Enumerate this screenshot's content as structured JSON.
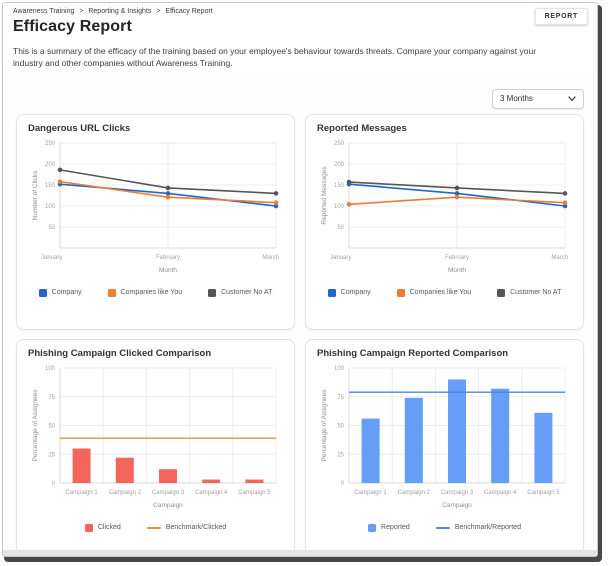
{
  "header": {
    "breadcrumb": {
      "separator": ">",
      "items": [
        {
          "label": "Awareness Training"
        },
        {
          "label": "Reporting & Insights"
        },
        {
          "label": "Efficacy Report"
        }
      ]
    },
    "title": "Efficacy Report",
    "description": "This is a summary of the efficacy of the training based on your employee's behaviour towards threats. Compare your company against your industry and other companies without Awareness Training.",
    "report_button_label": "REPORT",
    "period_select": {
      "value": "3 Months",
      "icon": "chevron-down-icon"
    }
  },
  "colors": {
    "company_blue": "#2166c9",
    "companies_like_you_orange": "#ED7D31",
    "customer_no_at_gray": "#55565A",
    "clicked_red": "#F4655C",
    "benchmark_clicked_orange": "#E8913C",
    "reported_blue": "#669DF6",
    "benchmark_reported_blue": "#4C86E8",
    "card_border": "#e2e3e6",
    "grid_line": "#ececec",
    "window_shadow": "#474747"
  },
  "chart_data": [
    {
      "type": "line",
      "title": "Dangerous URL Clicks",
      "xlabel": "Month",
      "ylabel": "Number of Clicks",
      "ylim": [
        0,
        250
      ],
      "yticks": [
        50,
        100,
        150,
        200,
        250
      ],
      "grid": true,
      "legend_position": "bottom",
      "categories": [
        "January",
        "February",
        "March"
      ],
      "series": [
        {
          "name": "Company",
          "color": "#2166c9",
          "values": [
            152,
            130,
            100
          ]
        },
        {
          "name": "Companies like You",
          "color": "#ED7D31",
          "values": [
            158,
            121,
            108
          ]
        },
        {
          "name": "Customer No AT",
          "color": "#55565A",
          "values": [
            186,
            143,
            130
          ]
        }
      ]
    },
    {
      "type": "line",
      "title": "Reported Messages",
      "xlabel": "Month",
      "ylabel": "Reported Messages",
      "ylim": [
        0,
        250
      ],
      "yticks": [
        50,
        100,
        150,
        200,
        250
      ],
      "grid": true,
      "legend_position": "bottom",
      "categories": [
        "January",
        "February",
        "March"
      ],
      "series": [
        {
          "name": "Company",
          "color": "#2166c9",
          "values": [
            152,
            130,
            100
          ]
        },
        {
          "name": "Companies like You",
          "color": "#ED7D31",
          "values": [
            104,
            121,
            108
          ]
        },
        {
          "name": "Customer No AT",
          "color": "#55565A",
          "values": [
            157,
            143,
            130
          ]
        }
      ]
    },
    {
      "type": "bar",
      "title": "Phishing Campaign Clicked Comparison",
      "xlabel": "Campaign",
      "ylabel": "Percentage of Assignees",
      "ylim": [
        0,
        100
      ],
      "yticks": [
        0,
        25,
        50,
        75,
        100
      ],
      "grid": true,
      "legend_position": "bottom",
      "categories": [
        "Campaign 1",
        "Campaign 2",
        "Campaign 3",
        "Campaign 4",
        "Campaign 5"
      ],
      "series": [
        {
          "name": "Clicked",
          "color": "#F4655C",
          "values": [
            30,
            22,
            12,
            3,
            3
          ]
        }
      ],
      "benchmark": {
        "name": "Benchmark/Clicked",
        "color": "#E8913C",
        "value": 39
      }
    },
    {
      "type": "bar",
      "title": "Phishing Campaign Reported Comparison",
      "xlabel": "Campaign",
      "ylabel": "Percentage of Assignees",
      "ylim": [
        0,
        100
      ],
      "yticks": [
        0,
        25,
        50,
        75,
        100
      ],
      "grid": true,
      "legend_position": "bottom",
      "categories": [
        "Campaign 1",
        "Campaign 2",
        "Campaign 3",
        "Campaign 4",
        "Campaign 5"
      ],
      "series": [
        {
          "name": "Reported",
          "color": "#669DF6",
          "values": [
            56,
            74,
            90,
            82,
            61
          ]
        }
      ],
      "benchmark": {
        "name": "Benchmark/Reported",
        "color": "#4C86E8",
        "value": 79
      }
    }
  ]
}
